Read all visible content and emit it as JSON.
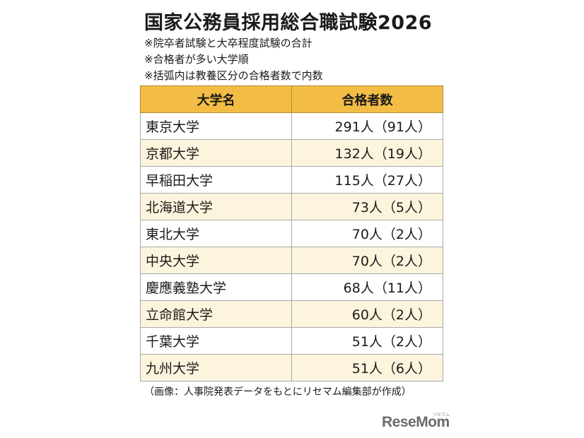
{
  "title": "国家公務員採用総合職試験2026",
  "notes": [
    "※院卒者試験と大卒程度試験の合計",
    "※合格者が多い大学順",
    "※括弧内は教養区分の合格者数で内数"
  ],
  "table": {
    "headers": [
      "大学名",
      "合格者数"
    ],
    "rows": [
      {
        "university": "東京大学",
        "count": "291人（91人）"
      },
      {
        "university": "京都大学",
        "count": "132人（19人）"
      },
      {
        "university": "早稲田大学",
        "count": "115人（27人）"
      },
      {
        "university": "北海道大学",
        "count": "73人（5人）"
      },
      {
        "university": "東北大学",
        "count": "70人（2人）"
      },
      {
        "university": "中央大学",
        "count": "70人（2人）"
      },
      {
        "university": "慶應義塾大学",
        "count": "68人（11人）"
      },
      {
        "university": "立命館大学",
        "count": "60人（2人）"
      },
      {
        "university": "千葉大学",
        "count": "51人（2人）"
      },
      {
        "university": "九州大学",
        "count": "51人（6人）"
      }
    ]
  },
  "source": "（画像：人事院発表データをもとにリセマム編集部が作成）",
  "logo": {
    "text": "ReseMom",
    "kana": "リセマム"
  },
  "colors": {
    "header_bg": "#f3bd45",
    "stripe_bg": "#fdf4dd"
  }
}
